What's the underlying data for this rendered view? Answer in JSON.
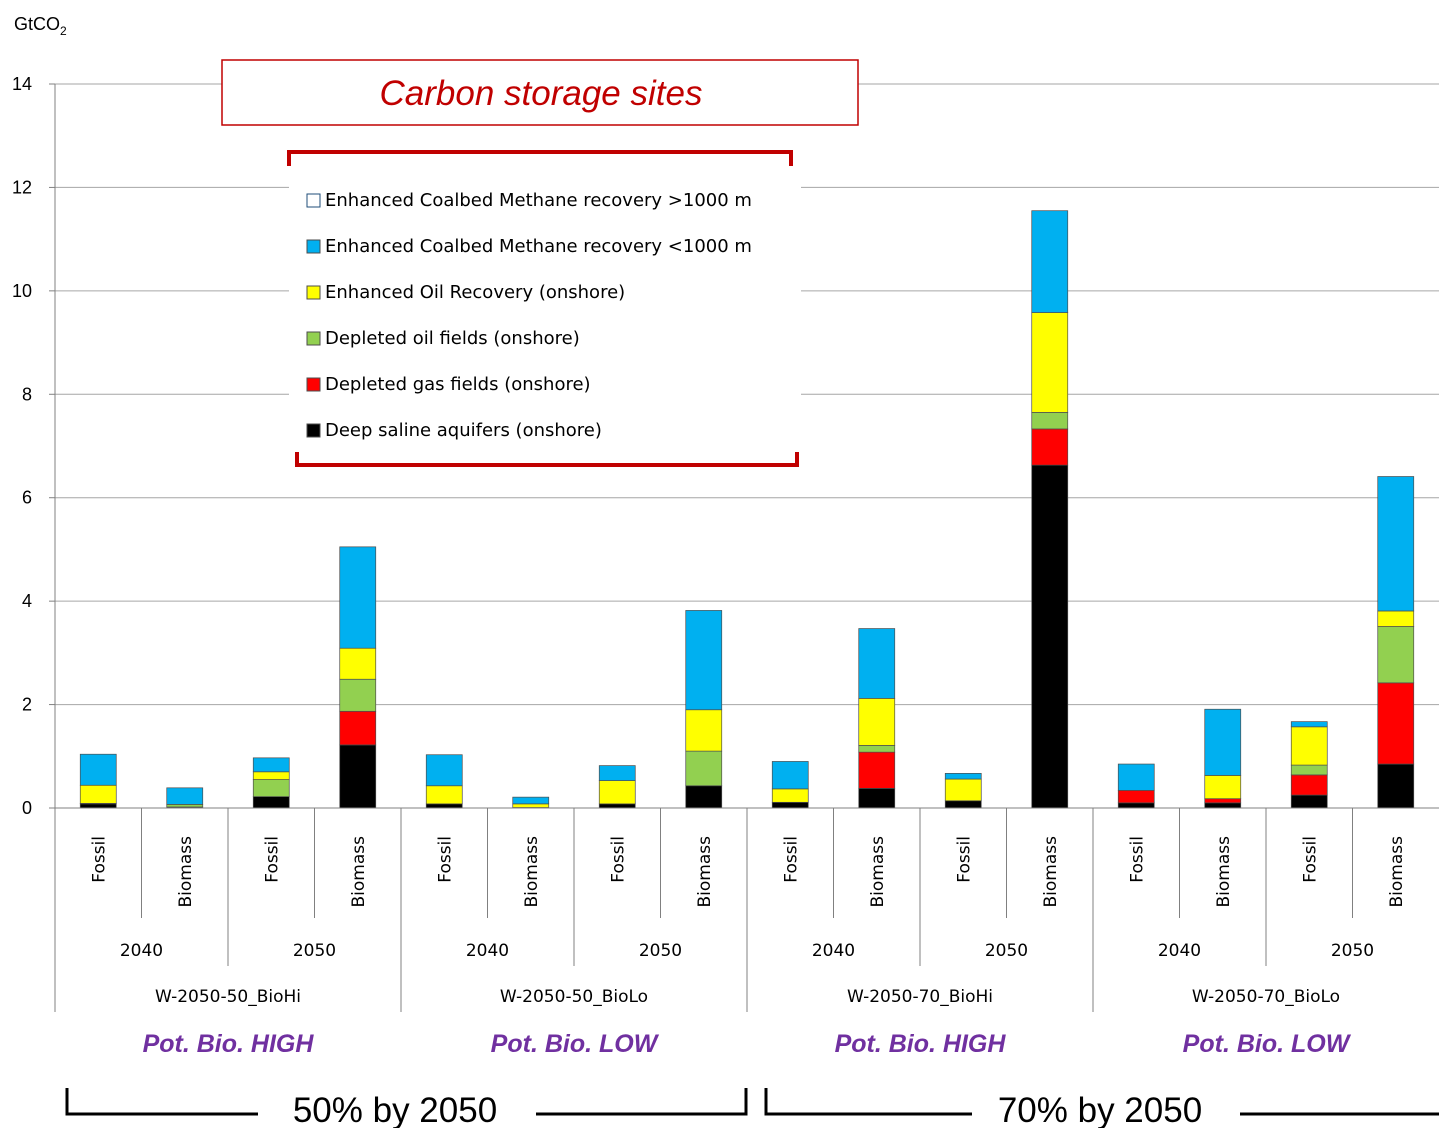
{
  "chart_data": {
    "type": "bar",
    "stacked": true,
    "unit_label": "GtCO",
    "unit_sub": "2",
    "ylim": [
      0,
      14
    ],
    "yticks": [
      "0",
      "2",
      "4",
      "6",
      "8",
      "10",
      "12",
      "14"
    ],
    "grid": true,
    "title_box": "Carbon storage sites",
    "series": [
      {
        "name": "Deep saline aquifers (onshore)",
        "color": "#000000",
        "values": [
          0.08,
          0.02,
          0.22,
          1.22,
          0.08,
          0.01,
          0.08,
          0.43,
          0.11,
          0.38,
          0.14,
          6.63,
          0.1,
          0.1,
          0.25,
          0.85
        ]
      },
      {
        "name": "Depleted gas fields (onshore)",
        "color": "#ff0000",
        "values": [
          0,
          0,
          0,
          0.65,
          0,
          0,
          0,
          0,
          0,
          0.7,
          0,
          0.7,
          0.24,
          0.08,
          0.39,
          1.57
        ]
      },
      {
        "name": "Depleted oil fields (onshore)",
        "color": "#92d050",
        "values": [
          0.01,
          0.05,
          0.33,
          0.62,
          0,
          0,
          0,
          0.67,
          0,
          0.13,
          0,
          0.32,
          0,
          0,
          0.19,
          1.09
        ]
      },
      {
        "name": "Enhanced Oil Recovery (onshore)",
        "color": "#ffff00",
        "values": [
          0.35,
          0,
          0.15,
          0.6,
          0.35,
          0.07,
          0.45,
          0.8,
          0.26,
          0.91,
          0.42,
          1.93,
          0,
          0.45,
          0.74,
          0.3
        ]
      },
      {
        "name": "Enhanced Coalbed Methane recovery <1000 m",
        "color": "#00b0f0",
        "values": [
          0.6,
          0.32,
          0.27,
          1.96,
          0.6,
          0.13,
          0.29,
          1.92,
          0.53,
          1.35,
          0.11,
          1.97,
          0.51,
          1.28,
          0.1,
          2.6
        ]
      },
      {
        "name": "Enhanced Coalbed Methane recovery >1000 m",
        "color": "#ffffff",
        "values": [
          0,
          0,
          0,
          0,
          0,
          0,
          0,
          0,
          0,
          0,
          0,
          0,
          0,
          0,
          0,
          0
        ]
      }
    ],
    "categories": [
      "Fossil",
      "Biomass",
      "Fossil",
      "Biomass",
      "Fossil",
      "Biomass",
      "Fossil",
      "Biomass",
      "Fossil",
      "Biomass",
      "Fossil",
      "Biomass",
      "Fossil",
      "Biomass",
      "Fossil",
      "Biomass"
    ],
    "years": [
      "2040",
      "2050",
      "2040",
      "2050",
      "2040",
      "2050",
      "2040",
      "2050"
    ],
    "scenarios": [
      "W-2050-50_BioHi",
      "W-2050-50_BioLo",
      "W-2050-70_BioHi",
      "W-2050-70_BioLo"
    ],
    "potential_labels": [
      "Pot. Bio. HIGH",
      "Pot. Bio. LOW",
      "Pot. Bio. HIGH",
      "Pot. Bio. LOW"
    ],
    "group_labels": [
      "50% by 2050",
      "70% by 2050"
    ],
    "legend_order": [
      5,
      4,
      3,
      2,
      1,
      0
    ]
  }
}
